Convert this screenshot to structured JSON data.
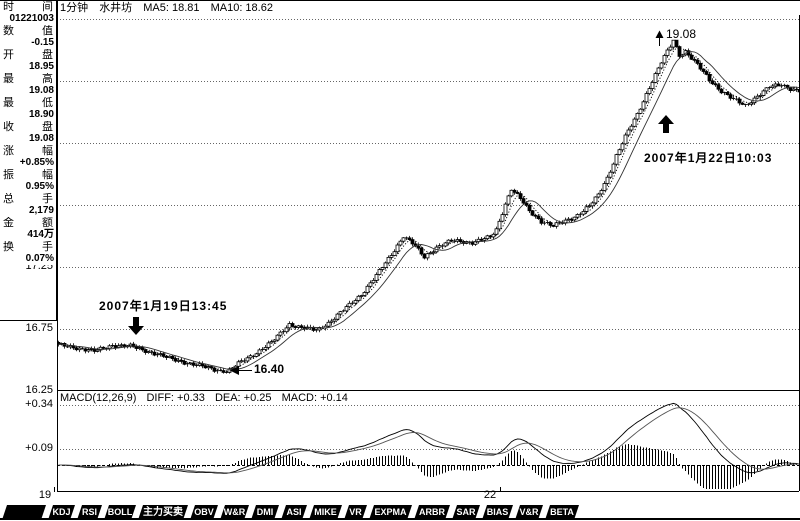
{
  "header": {
    "period": "1分钟",
    "stock_name": "水井坊",
    "ma5": "MA5: 18.81",
    "ma10": "MA10: 18.62"
  },
  "sidebar": {
    "rows": [
      {
        "key": "time",
        "label": "时间",
        "value": "01221003"
      },
      {
        "key": "value",
        "label": "数值",
        "value": "-0.15"
      },
      {
        "key": "open",
        "label": "开盘",
        "value": "18.95"
      },
      {
        "key": "high",
        "label": "最高",
        "value": "19.08"
      },
      {
        "key": "low",
        "label": "最低",
        "value": "18.90"
      },
      {
        "key": "close",
        "label": "收盘",
        "value": "19.08"
      },
      {
        "key": "change-pct",
        "label": "涨幅",
        "value": "+0.85%"
      },
      {
        "key": "amplitude",
        "label": "振幅",
        "value": "0.95%"
      },
      {
        "key": "volume",
        "label": "总手",
        "value": "2,179"
      },
      {
        "key": "amount",
        "label": "金额",
        "value": "414万"
      },
      {
        "key": "turnover-rate",
        "label": "换手",
        "value": "0.07%"
      }
    ]
  },
  "price_axis_labels": [
    "17.25",
    "16.75",
    "16.25"
  ],
  "macd_axis_labels": [
    "+0.34",
    "+0.09"
  ],
  "time_axis_labels": [
    {
      "text": "19",
      "x": 45
    },
    {
      "text": "22",
      "x": 490
    }
  ],
  "annotations": {
    "event1_date": "2007年1月19日13:45",
    "event2_date": "2007年1月22日10:03",
    "low_label": "16.40",
    "high_label": "19.08"
  },
  "macd_header": {
    "title": "MACD(12,26,9)",
    "diff": "DIFF: +0.33",
    "dea": "DEA: +0.25",
    "macd": "MACD: +0.14"
  },
  "tabs": [
    {
      "key": "blank",
      "label": ""
    },
    {
      "key": "kdj",
      "label": "KDJ"
    },
    {
      "key": "rsi",
      "label": "RSI"
    },
    {
      "key": "boll",
      "label": "BOLL"
    },
    {
      "key": "main-force",
      "label": "主力买卖"
    },
    {
      "key": "obv",
      "label": "OBV"
    },
    {
      "key": "w-r",
      "label": "W&R"
    },
    {
      "key": "dmi",
      "label": "DMI"
    },
    {
      "key": "asi",
      "label": "ASI"
    },
    {
      "key": "mike",
      "label": "MIKE"
    },
    {
      "key": "vr",
      "label": "VR"
    },
    {
      "key": "expma",
      "label": "EXPMA"
    },
    {
      "key": "arbr",
      "label": "ARBR"
    },
    {
      "key": "sar",
      "label": "SAR"
    },
    {
      "key": "bias",
      "label": "BIAS"
    },
    {
      "key": "v-r",
      "label": "V&R"
    },
    {
      "key": "beta",
      "label": "BETA"
    }
  ],
  "chart_data": {
    "type": "candlestick",
    "stock": "水井坊",
    "period": "1分钟",
    "bars": 248,
    "ylim": [
      16.25,
      19.25
    ],
    "price_gridlines": [
      19.25,
      18.75,
      18.25,
      17.75,
      17.25,
      16.75
    ],
    "price_keyframes": [
      [
        0,
        16.62
      ],
      [
        6,
        16.6
      ],
      [
        12,
        16.57
      ],
      [
        18,
        16.62
      ],
      [
        24,
        16.61
      ],
      [
        30,
        16.57
      ],
      [
        36,
        16.52
      ],
      [
        44,
        16.47
      ],
      [
        51,
        16.43
      ],
      [
        56,
        16.4
      ],
      [
        60,
        16.47
      ],
      [
        66,
        16.56
      ],
      [
        71,
        16.64
      ],
      [
        77,
        16.79
      ],
      [
        81,
        16.76
      ],
      [
        86,
        16.74
      ],
      [
        90,
        16.8
      ],
      [
        95,
        16.9
      ],
      [
        101,
        17.03
      ],
      [
        106,
        17.18
      ],
      [
        111,
        17.35
      ],
      [
        115,
        17.5
      ],
      [
        118,
        17.44
      ],
      [
        122,
        17.33
      ],
      [
        126,
        17.41
      ],
      [
        131,
        17.46
      ],
      [
        138,
        17.45
      ],
      [
        144,
        17.49
      ],
      [
        146,
        17.55
      ],
      [
        147,
        17.62
      ],
      [
        149,
        17.76
      ],
      [
        151,
        17.88
      ],
      [
        154,
        17.8
      ],
      [
        157,
        17.7
      ],
      [
        161,
        17.62
      ],
      [
        165,
        17.58
      ],
      [
        169,
        17.62
      ],
      [
        173,
        17.67
      ],
      [
        177,
        17.74
      ],
      [
        180,
        17.83
      ],
      [
        183,
        17.97
      ],
      [
        186,
        18.15
      ],
      [
        189,
        18.3
      ],
      [
        193,
        18.48
      ],
      [
        197,
        18.7
      ],
      [
        201,
        18.9
      ],
      [
        204,
        19.03
      ],
      [
        205,
        19.08
      ],
      [
        207,
        18.96
      ],
      [
        209,
        18.99
      ],
      [
        213,
        18.88
      ],
      [
        217,
        18.76
      ],
      [
        221,
        18.67
      ],
      [
        225,
        18.6
      ],
      [
        229,
        18.55
      ],
      [
        233,
        18.63
      ],
      [
        237,
        18.7
      ],
      [
        241,
        18.72
      ],
      [
        244,
        18.69
      ],
      [
        247,
        18.67
      ]
    ],
    "session_breaks": [
      {
        "label": "19",
        "bar": 0
      },
      {
        "label": "22",
        "bar": 144
      }
    ],
    "key_points": {
      "session_low": 16.4,
      "session_low_time": "2007年1月19日13:45",
      "session_high": 19.08,
      "session_high_time": "2007年1月22日10:03",
      "ma5_last": 18.81,
      "ma10_last": 18.62
    },
    "macd": {
      "params": [
        12,
        26,
        9
      ],
      "diff": 0.33,
      "dea": 0.25,
      "macd": 0.14,
      "axis_gridlines": [
        0.34,
        0.09
      ],
      "legend_position": "top-left"
    }
  }
}
